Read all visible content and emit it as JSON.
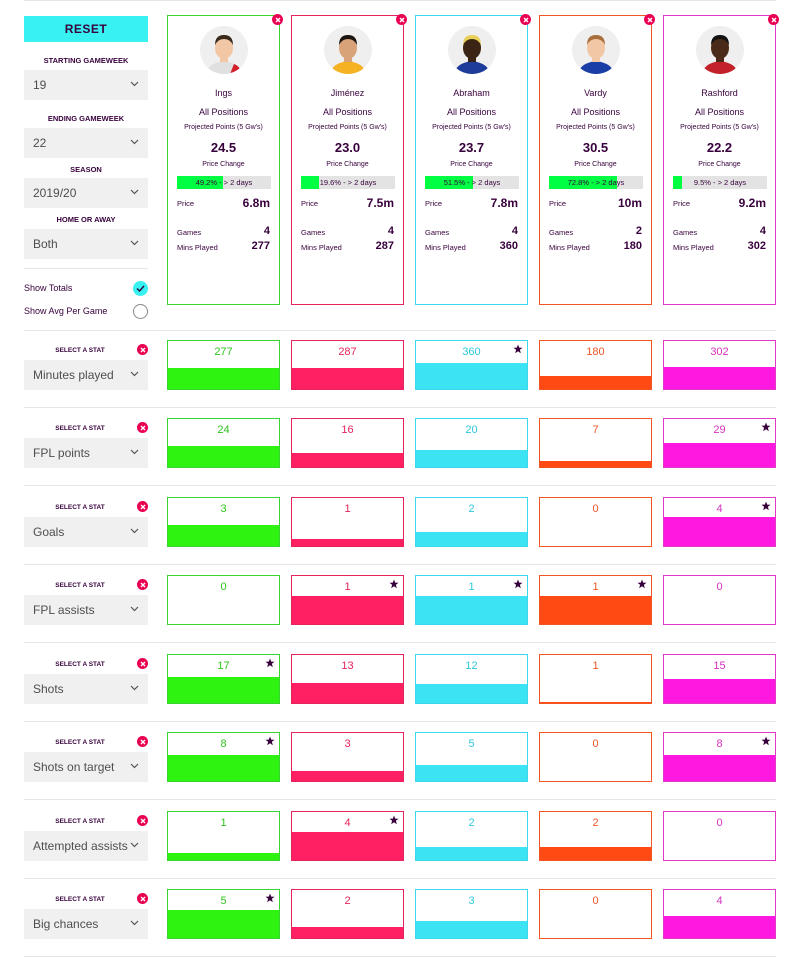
{
  "controls": {
    "reset_label": "RESET",
    "starting_gameweek": {
      "label": "STARTING GAMEWEEK",
      "value": "19"
    },
    "ending_gameweek": {
      "label": "ENDING GAMEWEEK",
      "value": "22"
    },
    "season": {
      "label": "SEASON",
      "value": "2019/20"
    },
    "home_away": {
      "label": "HOME OR AWAY",
      "value": "Both"
    },
    "show_totals": {
      "label": "Show Totals",
      "checked": true
    },
    "show_avg": {
      "label": "Show Avg Per Game",
      "checked": false
    }
  },
  "card_labels": {
    "position": "All Positions",
    "projected": "Projected Points (5 Gw's)",
    "price_change": "Price Change",
    "price": "Price",
    "games": "Games",
    "mins": "Mins Played"
  },
  "players": [
    {
      "name": "Ings",
      "color": "#38d430",
      "fill": "#2ef210",
      "text_color": "#2ec41c",
      "projected": "24.5",
      "change_text": "49.2% - > 2 days",
      "change_pct": 49.2,
      "price": "6.8m",
      "games": "4",
      "mins": "277",
      "shirt": "#e0e0e0",
      "shirt2": "#d41f2c",
      "skin": "#f2c7a6",
      "hair": "#3a2a1c"
    },
    {
      "name": "Jiménez",
      "color": "#e4245a",
      "fill": "#ff2063",
      "text_color": "#e4245a",
      "projected": "23.0",
      "change_text": "19.6% - > 2 days",
      "change_pct": 19.6,
      "price": "7.5m",
      "games": "4",
      "mins": "287",
      "shirt": "#f5b324",
      "shirt2": "#f5b324",
      "skin": "#d9a37a",
      "hair": "#1b1511"
    },
    {
      "name": "Abraham",
      "color": "#3ad8ea",
      "fill": "#3be3f3",
      "text_color": "#2dc8dc",
      "projected": "23.7",
      "change_text": "51.5% - > 2 days",
      "change_pct": 51.5,
      "price": "7.8m",
      "games": "4",
      "mins": "360",
      "shirt": "#1e3d9a",
      "shirt2": "#1e3d9a",
      "skin": "#3b2414",
      "hair": "#e8cf5a"
    },
    {
      "name": "Vardy",
      "color": "#f05525",
      "fill": "#ff4a14",
      "text_color": "#f05525",
      "projected": "30.5",
      "change_text": "72.8% - > 2 days",
      "change_pct": 72.8,
      "price": "10m",
      "games": "2",
      "mins": "180",
      "shirt": "#1a3ea5",
      "shirt2": "#1a3ea5",
      "skin": "#f2c7a6",
      "hair": "#a86f3c"
    },
    {
      "name": "Rashford",
      "color": "#e238c8",
      "fill": "#ff18e0",
      "text_color": "#d632c0",
      "projected": "22.2",
      "change_text": "9.5% - > 2 days",
      "change_pct": 9.5,
      "price": "9.2m",
      "games": "4",
      "mins": "302",
      "shirt": "#c4222a",
      "shirt2": "#c4222a",
      "skin": "#4a2a18",
      "hair": "#111111"
    }
  ],
  "stat_label": "SELECT A STAT",
  "stats": [
    {
      "name": "Minutes played",
      "values": [
        "277",
        "287",
        "360",
        "180",
        "302"
      ],
      "fills": [
        0.43,
        0.43,
        0.55,
        0.27,
        0.45
      ],
      "stars": [
        false,
        false,
        true,
        false,
        false
      ]
    },
    {
      "name": "FPL points",
      "values": [
        "24",
        "16",
        "20",
        "7",
        "29"
      ],
      "fills": [
        0.44,
        0.29,
        0.36,
        0.13,
        0.5
      ],
      "stars": [
        false,
        false,
        false,
        false,
        true
      ]
    },
    {
      "name": "Goals",
      "values": [
        "3",
        "1",
        "2",
        "0",
        "4"
      ],
      "fills": [
        0.43,
        0.15,
        0.3,
        0,
        0.6
      ],
      "stars": [
        false,
        false,
        false,
        false,
        true
      ]
    },
    {
      "name": "FPL assists",
      "values": [
        "0",
        "1",
        "1",
        "1",
        "0"
      ],
      "fills": [
        0,
        0.58,
        0.58,
        0.58,
        0
      ],
      "stars": [
        false,
        true,
        true,
        true,
        false
      ]
    },
    {
      "name": "Shots",
      "values": [
        "17",
        "13",
        "12",
        "1",
        "15"
      ],
      "fills": [
        0.55,
        0.42,
        0.4,
        0.03,
        0.5
      ],
      "stars": [
        true,
        false,
        false,
        false,
        false
      ]
    },
    {
      "name": "Shots on target",
      "values": [
        "8",
        "3",
        "5",
        "0",
        "8"
      ],
      "fills": [
        0.55,
        0.2,
        0.33,
        0,
        0.55
      ],
      "stars": [
        true,
        false,
        false,
        false,
        true
      ]
    },
    {
      "name": "Attempted assists",
      "values": [
        "1",
        "4",
        "2",
        "2",
        "0"
      ],
      "fills": [
        0.15,
        0.58,
        0.28,
        0.28,
        0
      ],
      "stars": [
        false,
        true,
        false,
        false,
        false
      ]
    },
    {
      "name": "Big chances",
      "values": [
        "5",
        "2",
        "3",
        "0",
        "4"
      ],
      "fills": [
        0.58,
        0.23,
        0.35,
        0,
        0.45
      ],
      "stars": [
        true,
        false,
        false,
        false,
        false
      ]
    }
  ]
}
